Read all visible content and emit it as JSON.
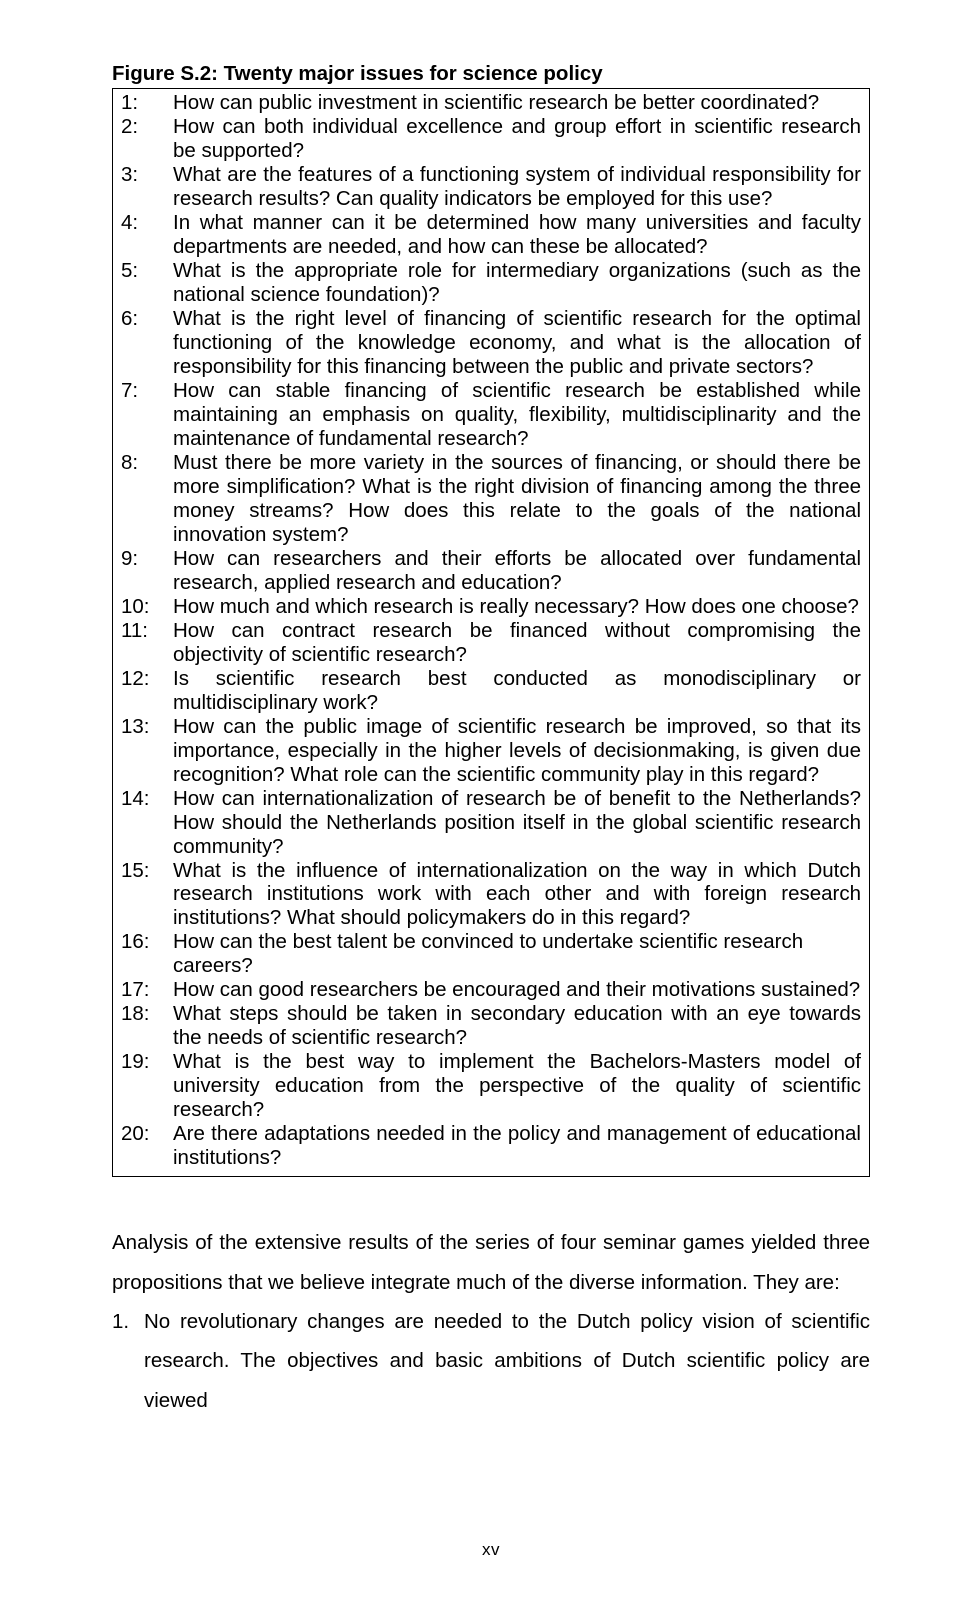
{
  "figure_title": "Figure S.2: Twenty major issues for science policy",
  "issues": [
    {
      "n": "1:",
      "t": "How can public investment in scientific research be better coordinated?",
      "j": false
    },
    {
      "n": "2:",
      "t": "How can both individual excellence and group effort in scientific research be supported?",
      "j": true
    },
    {
      "n": "3:",
      "t": "What are the features of a functioning system of individual responsibility for research results? Can quality indicators be employed for this use?",
      "j": true
    },
    {
      "n": "4:",
      "t": "In what manner can it be determined how many universities and faculty departments are needed, and how can these be allocated?",
      "j": true
    },
    {
      "n": "5:",
      "t": "What is the appropriate role for intermediary organizations (such as the national science foundation)?",
      "j": true
    },
    {
      "n": "6:",
      "t": "What is the right level of financing of scientific research for the optimal functioning of the knowledge economy, and what is the allocation of responsibility for this financing between the public and private sectors?",
      "j": true
    },
    {
      "n": "7:",
      "t": "How can stable financing of scientific research be established while maintaining an emphasis on quality, flexibility, multidisciplinarity and the maintenance of fundamental research?",
      "j": true
    },
    {
      "n": "8:",
      "t": "Must there be more variety in the sources of financing, or should there be more simplification? What is the right division of financing among the three money streams? How does this relate to the goals of the national innovation system?",
      "j": true
    },
    {
      "n": "9:",
      "t": "How can researchers and their efforts be allocated over fundamental research, applied research and education?",
      "j": true
    },
    {
      "n": "10:",
      "t": "How much and which research is really necessary? How does one choose?",
      "j": false
    },
    {
      "n": "11:",
      "t": "How can contract research be financed without compromising the objectivity of scientific research?",
      "j": true
    },
    {
      "n": "12:",
      "t": "Is scientific research best conducted as monodisciplinary or multidisciplinary work?",
      "j": true
    },
    {
      "n": "13:",
      "t": "How can the public image of scientific research be improved, so that its importance, especially in the higher levels of decisionmaking, is given due recognition? What role can the scientific community play in this regard?",
      "j": true
    },
    {
      "n": "14:",
      "t": "How can internationalization of research be of benefit to the Netherlands? How should the Netherlands position itself in the global scientific research community?",
      "j": true
    },
    {
      "n": "15:",
      "t": "What is the influence of internationalization on the way in which Dutch research institutions work with each other and with foreign research institutions? What should policymakers do in this regard?",
      "j": true
    },
    {
      "n": "16:",
      "t": "How can the best talent be convinced to undertake scientific research careers?",
      "j": false
    },
    {
      "n": "17:",
      "t": "How can good researchers be encouraged and their motivations sustained?",
      "j": false
    },
    {
      "n": "18:",
      "t": "What steps should be taken in secondary education with an eye towards the needs of scientific research?",
      "j": true
    },
    {
      "n": "19:",
      "t": "What is the best way to implement the Bachelors-Masters model of university education from the perspective of the quality of scientific research?",
      "j": true
    },
    {
      "n": "20:",
      "t": "Are there adaptations needed in the policy and management of educational institutions?",
      "j": true
    }
  ],
  "below_para": "Analysis of the extensive results of the series of four seminar games yielded three propositions that we believe integrate much of the diverse information. They are:",
  "prop1_n": "1.",
  "prop1_t": "No revolutionary changes are needed to the Dutch policy vision of scientific research. The objectives and basic ambitions of Dutch scientific policy are viewed",
  "page_number": "xv"
}
